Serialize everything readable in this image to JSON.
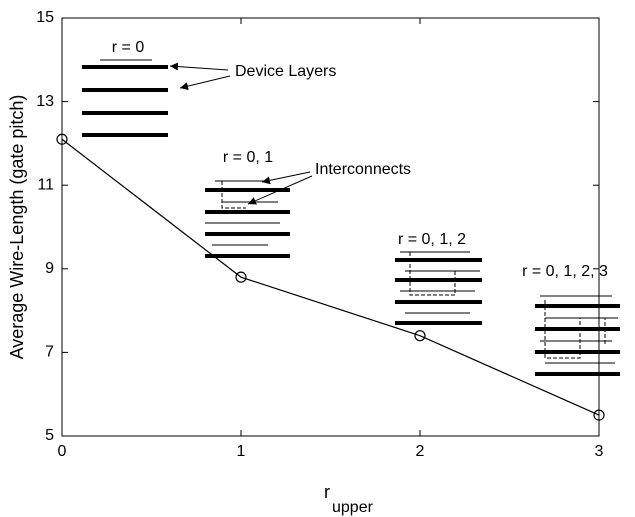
{
  "chart_data": {
    "type": "line",
    "xlabel": "r",
    "xlabel_subscript": "upper",
    "ylabel": "Average Wire-Length (gate pitch)",
    "x": [
      0,
      1,
      2,
      3
    ],
    "series": [
      {
        "color": "#000000",
        "values": [
          12.1,
          8.8,
          7.4,
          5.5
        ]
      }
    ],
    "xlim": [
      0,
      3
    ],
    "xticks": [
      0,
      1,
      2,
      3
    ],
    "ylim": [
      5,
      15
    ],
    "yticks": [
      5,
      7,
      9,
      11,
      13,
      15
    ],
    "annotations": [
      "r = 0",
      "Device Layers",
      "r = 0, 1",
      "Interconnects",
      "r = 0, 1, 2",
      "r = 0, 1, 2, 3"
    ]
  }
}
